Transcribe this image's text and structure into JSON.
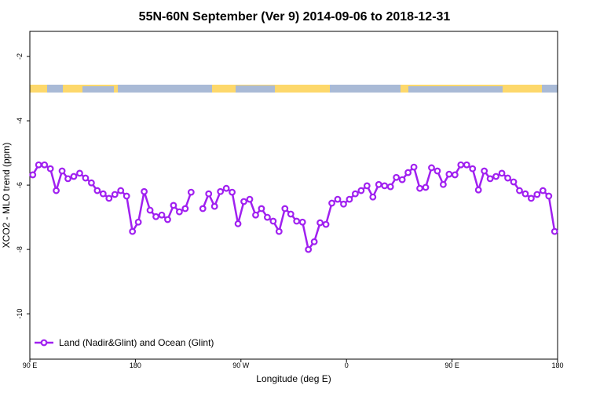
{
  "chart_data": {
    "type": "line",
    "title": "55N-60N September (Ver 9)   2014-09-06 to 2018-12-31",
    "xlabel": "Longitude (deg E)",
    "ylabel": "XCO2 - MLO trend (ppm)",
    "x": [
      92.5,
      97.5,
      102.5,
      107.5,
      112.5,
      117.5,
      122.5,
      127.5,
      132.5,
      137.5,
      142.5,
      147.5,
      152.5,
      157.5,
      162.5,
      167.5,
      172.5,
      177.5,
      182.5,
      187.5,
      192.5,
      197.5,
      202.5,
      207.5,
      212.5,
      217.5,
      222.5,
      227.5,
      232.5,
      237.5,
      242.5,
      247.5,
      252.5,
      257.5,
      262.5,
      267.5,
      272.5,
      277.5,
      282.5,
      287.5,
      292.5,
      297.5,
      302.5,
      307.5,
      312.5,
      317.5,
      322.5,
      327.5,
      332.5,
      337.5,
      342.5,
      347.5,
      352.5,
      357.5,
      362.5,
      367.5,
      372.5,
      377.5,
      382.5,
      387.5,
      392.5,
      397.5,
      402.5,
      407.5,
      412.5,
      417.5,
      422.5,
      427.5,
      432.5,
      437.5,
      442.5,
      447.5,
      452.5,
      457.5,
      462.5,
      467.5,
      472.5,
      477.5,
      482.5,
      487.5,
      492.5,
      497.5,
      502.5,
      507.5,
      512.5,
      517.5,
      522.5,
      527.5,
      532.5,
      537.5
    ],
    "series": [
      {
        "name": "Land (Nadir&Glint) and Ocean (Glint)",
        "color": "#a020f0",
        "values": [
          -5.68,
          -5.37,
          -5.37,
          -5.49,
          -6.17,
          -5.56,
          -5.8,
          -5.73,
          -5.63,
          -5.78,
          -5.93,
          -6.17,
          -6.27,
          -6.41,
          -6.29,
          -6.17,
          -6.34,
          -7.44,
          -7.15,
          -6.2,
          -6.78,
          -6.98,
          -6.93,
          -7.07,
          -6.63,
          -6.83,
          -6.73,
          -6.22,
          null,
          -6.73,
          -6.27,
          -6.66,
          -6.2,
          -6.1,
          -6.22,
          -7.2,
          -6.51,
          -6.44,
          -6.93,
          -6.73,
          -7.0,
          -7.12,
          -7.44,
          -6.73,
          -6.9,
          -7.12,
          -7.15,
          -8.0,
          -7.76,
          -7.17,
          -7.22,
          -6.56,
          -6.44,
          -6.59,
          -6.44,
          -6.27,
          -6.17,
          -6.02,
          -6.37,
          -5.98,
          -6.02,
          -6.05,
          -5.76,
          -5.83,
          -5.61,
          -5.44,
          -6.1,
          -6.07,
          -5.46,
          -5.56,
          -5.98,
          -5.66,
          -5.68,
          -5.37,
          -5.37,
          -5.49,
          -6.15,
          -5.56,
          -5.8,
          -5.73,
          -5.63,
          -5.78,
          -5.9,
          -6.17,
          -6.27,
          -6.41,
          -6.29,
          -6.17,
          -6.34,
          -7.44
        ]
      }
    ],
    "xlim": [
      90,
      540
    ],
    "xticks": [
      {
        "value": 90,
        "label": "90 E"
      },
      180,
      {
        "value": 270,
        "label": "90 W"
      },
      {
        "value": 360,
        "label": "0"
      },
      {
        "value": 450,
        "label": "90 E"
      },
      {
        "value": 540,
        "label": "180"
      }
    ],
    "ylim": [
      -11.41,
      -1.22
    ],
    "yticks": [
      -2,
      -4,
      -6,
      -8,
      -10
    ],
    "legend": "lower left"
  }
}
